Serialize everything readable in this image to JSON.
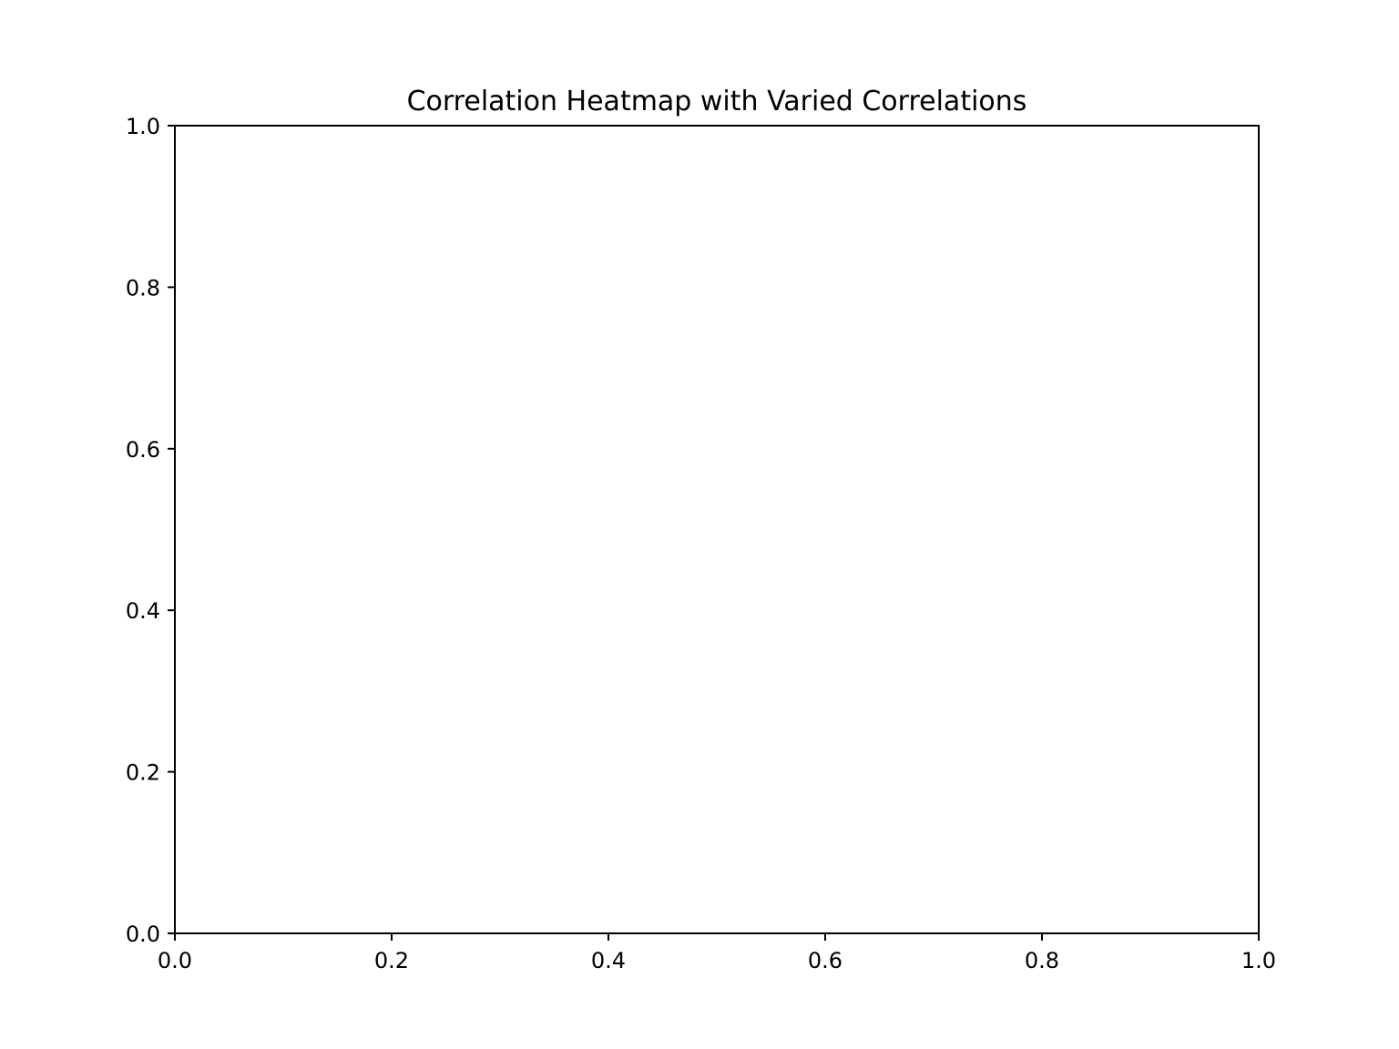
{
  "chart_data": {
    "type": "heatmap",
    "title": "Correlation Heatmap with Varied Correlations",
    "xlabel": "",
    "ylabel": "",
    "xlim": [
      0.0,
      1.0
    ],
    "ylim": [
      0.0,
      1.0
    ],
    "x_ticks": [
      "0.0",
      "0.2",
      "0.4",
      "0.6",
      "0.8",
      "1.0"
    ],
    "y_ticks": [
      "0.0",
      "0.2",
      "0.4",
      "0.6",
      "0.8",
      "1.0"
    ],
    "grid": false,
    "colors": {
      "background": "#ffffff",
      "axis": "#000000",
      "text": "#000000"
    }
  }
}
